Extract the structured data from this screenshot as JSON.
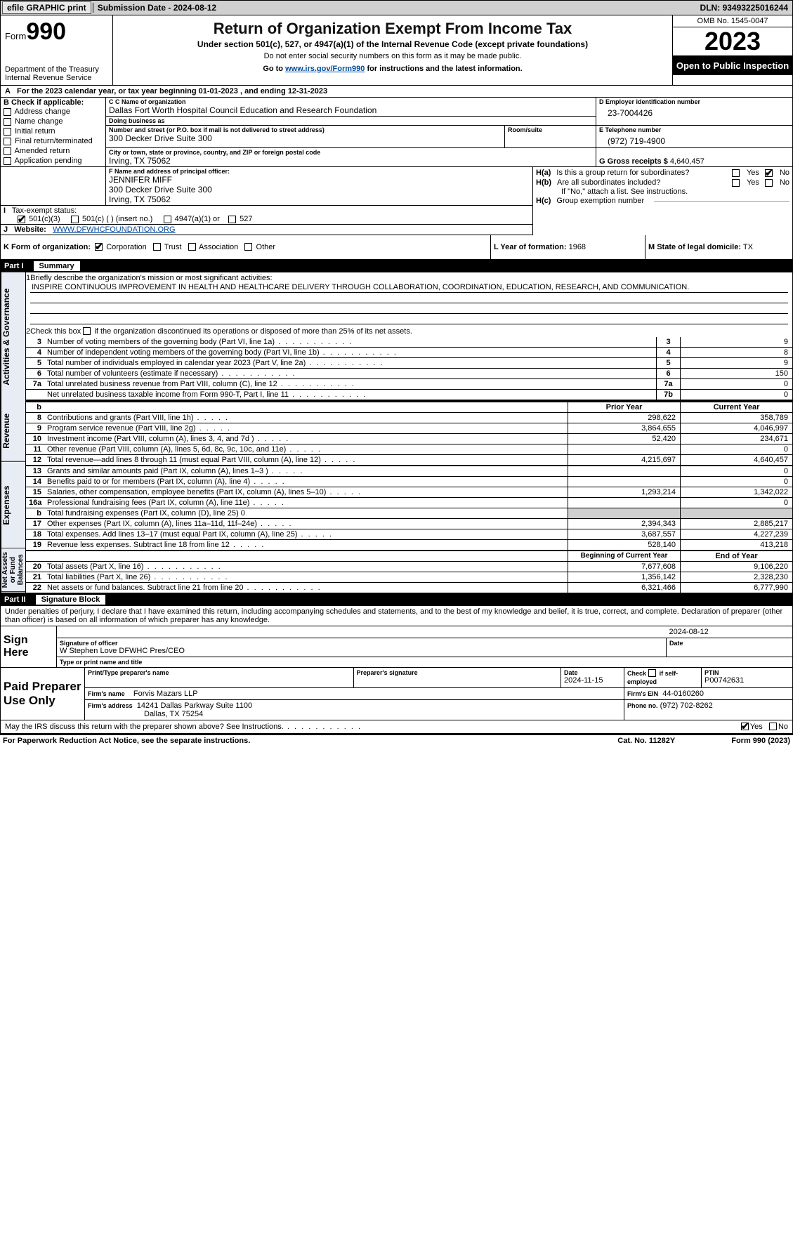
{
  "topbar": {
    "efile_label": "efile GRAPHIC print",
    "submission_label": "Submission Date",
    "submission_date": "2024-08-12",
    "dln_label": "DLN:",
    "dln": "93493225016244"
  },
  "header": {
    "form_prefix": "Form",
    "form_number": "990",
    "dept": "Department of the Treasury",
    "irs": "Internal Revenue Service",
    "title": "Return of Organization Exempt From Income Tax",
    "subtitle": "Under section 501(c), 527, or 4947(a)(1) of the Internal Revenue Code (except private foundations)",
    "warn": "Do not enter social security numbers on this form as it may be made public.",
    "goto_pre": "Go to ",
    "goto_link": "www.irs.gov/Form990",
    "goto_post": " for instructions and the latest information.",
    "omb": "OMB No. 1545-0047",
    "tax_year": "2023",
    "inspect": "Open to Public Inspection"
  },
  "section_a": {
    "text_pre": "For the 2023 calendar year, or tax year beginning ",
    "begin": "01-01-2023",
    "mid": " , and ending ",
    "end": "12-31-2023"
  },
  "box_b": {
    "header": "B Check if applicable:",
    "items": [
      {
        "label": "Address change",
        "checked": false
      },
      {
        "label": "Name change",
        "checked": false
      },
      {
        "label": "Initial return",
        "checked": false
      },
      {
        "label": "Final return/terminated",
        "checked": false
      },
      {
        "label": "Amended return",
        "checked": false
      },
      {
        "label": "Application pending",
        "checked": false
      }
    ]
  },
  "box_c": {
    "name_lbl": "C Name of organization",
    "name": "Dallas Fort Worth Hospital Council Education and Research Foundation",
    "dba_lbl": "Doing business as",
    "dba": "",
    "street_lbl": "Number and street (or P.O. box if mail is not delivered to street address)",
    "room_lbl": "Room/suite",
    "street": "300 Decker Drive Suite 300",
    "room": "",
    "city_lbl": "City or town, state or province, country, and ZIP or foreign postal code",
    "city": "Irving, TX  75062"
  },
  "box_d": {
    "ein_lbl": "D Employer identification number",
    "ein": "23-7004426"
  },
  "box_e": {
    "tel_lbl": "E Telephone number",
    "tel": "(972) 719-4900"
  },
  "box_g": {
    "lbl": "G Gross receipts $",
    "val": "4,640,457"
  },
  "box_f": {
    "lbl": "F Name and address of principal officer:",
    "name": "JENNIFER MIFF",
    "addr1": "300 Decker Drive Suite 300",
    "addr2": "Irving, TX  75062"
  },
  "box_h": {
    "ha_lbl": "Is this a group return for subordinates?",
    "ha_yes": false,
    "ha_no": true,
    "hb_lbl": "Are all subordinates included?",
    "hb_yes": false,
    "hb_no": false,
    "hb_note": "If \"No,\" attach a list. See instructions.",
    "hc_lbl": "Group exemption number",
    "hc_val": ""
  },
  "box_i": {
    "lbl": "Tax-exempt status:",
    "c3": true,
    "c_other": false,
    "c_insert": "(insert no.)",
    "a4947": false,
    "s527": false
  },
  "box_j": {
    "lbl": "Website:",
    "val": "WWW.DFWHCFOUNDATION.ORG"
  },
  "box_k": {
    "lbl": "K Form of organization:",
    "corp": true,
    "trust": false,
    "assoc": false,
    "other": false,
    "corp_lbl": "Corporation",
    "trust_lbl": "Trust",
    "assoc_lbl": "Association",
    "other_lbl": "Other"
  },
  "box_l": {
    "lbl": "L Year of formation:",
    "val": "1968"
  },
  "box_m": {
    "lbl": "M State of legal domicile:",
    "val": "TX"
  },
  "part1": {
    "hdr_part": "Part I",
    "hdr_name": "Summary",
    "side1": "Activities & Governance",
    "side2": "Revenue",
    "side3": "Expenses",
    "side4": "Net Assets or Fund Balances",
    "q1_lbl": "Briefly describe the organization's mission or most significant activities:",
    "q1_val": "INSPIRE CONTINUOUS IMPROVEMENT IN HEALTH AND HEALTHCARE DELIVERY THROUGH COLLABORATION, COORDINATION, EDUCATION, RESEARCH, AND COMMUNICATION.",
    "q2": "Check this box",
    "q2b": " if the organization discontinued its operations or disposed of more than 25% of its net assets.",
    "gov_rows": [
      {
        "n": "3",
        "d": "Number of voting members of the governing body (Part VI, line 1a)",
        "box": "3",
        "v": "9"
      },
      {
        "n": "4",
        "d": "Number of independent voting members of the governing body (Part VI, line 1b)",
        "box": "4",
        "v": "8"
      },
      {
        "n": "5",
        "d": "Total number of individuals employed in calendar year 2023 (Part V, line 2a)",
        "box": "5",
        "v": "9"
      },
      {
        "n": "6",
        "d": "Total number of volunteers (estimate if necessary)",
        "box": "6",
        "v": "150"
      },
      {
        "n": "7a",
        "d": "Total unrelated business revenue from Part VIII, column (C), line 12",
        "box": "7a",
        "v": "0"
      },
      {
        "n": "",
        "d": "Net unrelated business taxable income from Form 990-T, Part I, line 11",
        "box": "7b",
        "v": "0"
      }
    ],
    "prior_hdr": "Prior Year",
    "curr_hdr": "Current Year",
    "rev_rows": [
      {
        "n": "8",
        "d": "Contributions and grants (Part VIII, line 1h)",
        "p": "298,622",
        "c": "358,789"
      },
      {
        "n": "9",
        "d": "Program service revenue (Part VIII, line 2g)",
        "p": "3,864,655",
        "c": "4,046,997"
      },
      {
        "n": "10",
        "d": "Investment income (Part VIII, column (A), lines 3, 4, and 7d )",
        "p": "52,420",
        "c": "234,671"
      },
      {
        "n": "11",
        "d": "Other revenue (Part VIII, column (A), lines 5, 6d, 8c, 9c, 10c, and 11e)",
        "p": "",
        "c": "0"
      },
      {
        "n": "12",
        "d": "Total revenue—add lines 8 through 11 (must equal Part VIII, column (A), line 12)",
        "p": "4,215,697",
        "c": "4,640,457"
      }
    ],
    "exp_rows": [
      {
        "n": "13",
        "d": "Grants and similar amounts paid (Part IX, column (A), lines 1–3 )",
        "p": "",
        "c": "0"
      },
      {
        "n": "14",
        "d": "Benefits paid to or for members (Part IX, column (A), line 4)",
        "p": "",
        "c": "0"
      },
      {
        "n": "15",
        "d": "Salaries, other compensation, employee benefits (Part IX, column (A), lines 5–10)",
        "p": "1,293,214",
        "c": "1,342,022"
      },
      {
        "n": "16a",
        "d": "Professional fundraising fees (Part IX, column (A), line 11e)",
        "p": "",
        "c": "0"
      },
      {
        "n": "b",
        "d": "Total fundraising expenses (Part IX, column (D), line 25) 0",
        "p": "__shade__",
        "c": "__shade__"
      },
      {
        "n": "17",
        "d": "Other expenses (Part IX, column (A), lines 11a–11d, 11f–24e)",
        "p": "2,394,343",
        "c": "2,885,217"
      },
      {
        "n": "18",
        "d": "Total expenses. Add lines 13–17 (must equal Part IX, column (A), line 25)",
        "p": "3,687,557",
        "c": "4,227,239"
      },
      {
        "n": "19",
        "d": "Revenue less expenses. Subtract line 18 from line 12",
        "p": "528,140",
        "c": "413,218"
      }
    ],
    "na_hdr1": "Beginning of Current Year",
    "na_hdr2": "End of Year",
    "na_rows": [
      {
        "n": "20",
        "d": "Total assets (Part X, line 16)",
        "p": "7,677,608",
        "c": "9,106,220"
      },
      {
        "n": "21",
        "d": "Total liabilities (Part X, line 26)",
        "p": "1,356,142",
        "c": "2,328,230"
      },
      {
        "n": "22",
        "d": "Net assets or fund balances. Subtract line 21 from line 20",
        "p": "6,321,466",
        "c": "6,777,990"
      }
    ]
  },
  "part2": {
    "hdr_part": "Part II",
    "hdr_name": "Signature Block",
    "decl": "Under penalties of perjury, I declare that I have examined this return, including accompanying schedules and statements, and to the best of my knowledge and belief, it is true, correct, and complete. Declaration of preparer (other than officer) is based on all information of which preparer has any knowledge.",
    "sign_here": "Sign Here",
    "sig_lbl": "Signature of officer",
    "sig_date_lbl": "Date",
    "sig_date": "2024-08-12",
    "officer": "W Stephen Love DFWHC Pres/CEO",
    "type_lbl": "Type or print name and title",
    "paid": "Paid Preparer Use Only",
    "prep_name_lbl": "Print/Type preparer's name",
    "prep_name": "",
    "prep_sig_lbl": "Preparer's signature",
    "prep_date_lbl": "Date",
    "prep_date": "2024-11-15",
    "self_lbl": "Check          if self-employed",
    "self_checked": false,
    "ptin_lbl": "PTIN",
    "ptin": "P00742631",
    "firm_name_lbl": "Firm's name",
    "firm_name": "Forvis Mazars LLP",
    "firm_ein_lbl": "Firm's EIN",
    "firm_ein": "44-0160260",
    "firm_addr_lbl": "Firm's address",
    "firm_addr1": "14241 Dallas Parkway Suite 1100",
    "firm_addr2": "Dallas, TX  75254",
    "firm_phone_lbl": "Phone no.",
    "firm_phone": "(972) 702-8262",
    "discuss": "May the IRS discuss this return with the preparer shown above? See Instructions.",
    "discuss_yes": true,
    "discuss_no": false
  },
  "footer": {
    "pra": "For Paperwork Reduction Act Notice, see the separate instructions.",
    "cat": "Cat. No. 11282Y",
    "form": "Form 990 (2023)"
  },
  "labels": {
    "yes": "Yes",
    "no": "No",
    "ha": "H(a)",
    "hb": "H(b)",
    "hc": "H(c)",
    "a": "A",
    "i": "I",
    "j": "J",
    "five01c3": "501(c)(3)",
    "five01c": "501(c) (  )",
    "a4947": "4947(a)(1) or",
    "s527": "527"
  }
}
